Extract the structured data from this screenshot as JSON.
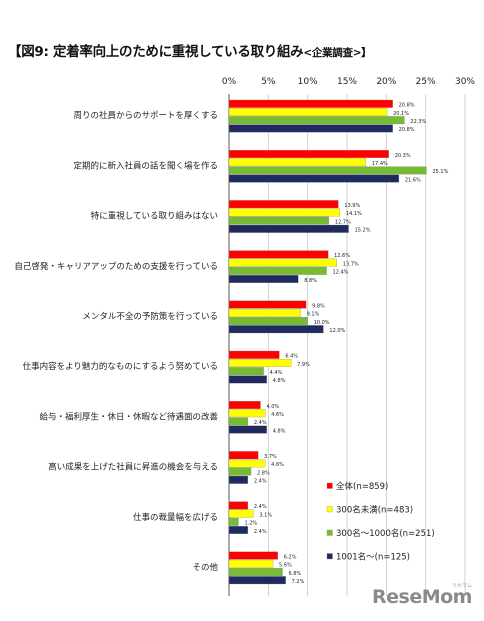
{
  "title": "【図9: 定着率向上のために重視している取り組み",
  "subtitle": "<企業調査>】",
  "watermark": "ReseMom",
  "watermark_small": "リセマム",
  "chart_data": {
    "type": "bar",
    "orientation": "horizontal",
    "xlim": [
      0,
      30
    ],
    "xticks": [
      "0%",
      "5%",
      "10%",
      "15%",
      "20%",
      "25%",
      "30%"
    ],
    "grid": true,
    "legend_position": "bottom-right",
    "categories": [
      "周りの社員からのサポートを厚くする",
      "定期的に新入社員の話を聞く場を作る",
      "特に重視している取り組みはない",
      "自己啓発・キャリアアップのための支援を行っている",
      "メンタル不全の予防策を行っている",
      "仕事内容をより魅力的なものにするよう努めている",
      "給与・福利厚生・休日・休暇など待遇面の改善",
      "高い成果を上げた社員に昇進の機会を与える",
      "仕事の裁量幅を広げる",
      "その他"
    ],
    "series": [
      {
        "name": "全体(n=859)",
        "color": "#ff0000",
        "values": [
          20.8,
          20.3,
          13.9,
          12.6,
          9.8,
          6.4,
          4.0,
          3.7,
          2.4,
          6.2
        ],
        "labels": [
          "20.8%",
          "20.3%",
          "13.9%",
          "12.6%",
          "9.8%",
          "6.4%",
          "4.0%",
          "3.7%",
          "2.4%",
          "6.2%"
        ]
      },
      {
        "name": "300名未満(n=483)",
        "color": "#ffff00",
        "values": [
          20.1,
          17.4,
          14.1,
          13.7,
          9.1,
          7.9,
          4.6,
          4.6,
          3.1,
          5.6
        ],
        "labels": [
          "20.1%",
          "17.4%",
          "14.1%",
          "13.7%",
          "9.1%",
          "7.9%",
          "4.6%",
          "4.6%",
          "3.1%",
          "5.6%"
        ]
      },
      {
        "name": "300名～1000名(n=251)",
        "color": "#77bb33",
        "values": [
          22.3,
          25.1,
          12.7,
          12.4,
          10.0,
          4.4,
          2.4,
          2.8,
          1.2,
          6.8
        ],
        "labels": [
          "22.3%",
          "25.1%",
          "12.7%",
          "12.4%",
          "10.0%",
          "4.4%",
          "2.4%",
          "2.8%",
          "1.2%",
          "6.8%"
        ]
      },
      {
        "name": "1001名～(n=125)",
        "color": "#1f2a5e",
        "values": [
          20.8,
          21.6,
          15.2,
          8.8,
          12.0,
          4.8,
          4.8,
          2.4,
          2.4,
          7.2
        ],
        "labels": [
          "20.8%",
          "21.6%",
          "15.2%",
          "8.8%",
          "12.0%",
          "4.8%",
          "4.8%",
          "2.4%",
          "2.4%",
          "7.2%"
        ]
      }
    ]
  }
}
